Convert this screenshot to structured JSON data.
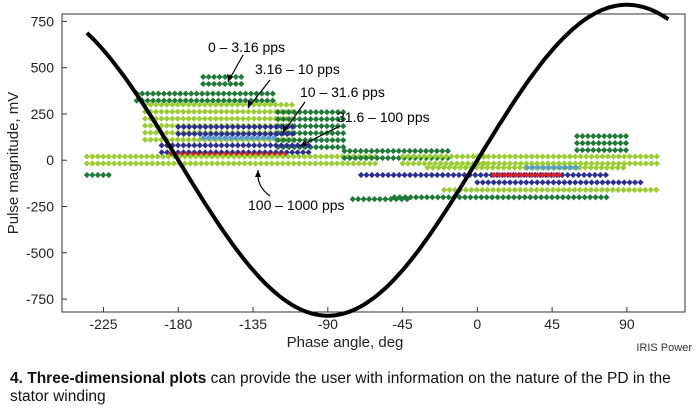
{
  "chart_data": {
    "type": "scatter",
    "title": "",
    "xlabel": "Phase angle, deg",
    "ylabel": "Pulse magnitude, mV",
    "xlim": [
      -250,
      125
    ],
    "ylim": [
      -820,
      790
    ],
    "xticks": [
      -225,
      -180,
      -135,
      -90,
      -45,
      0,
      45,
      90
    ],
    "yticks": [
      750,
      500,
      250,
      0,
      -250,
      -500,
      -750
    ],
    "xtick_labels": [
      "-225",
      "-180",
      "-135",
      "-90",
      "-45",
      "0",
      "45",
      "90"
    ],
    "ytick_labels": [
      "750",
      "500",
      "250",
      "0",
      "-250",
      "-500",
      "-750"
    ],
    "grid": false,
    "reference_curve": {
      "shape": "sine",
      "amplitude": 840,
      "period": 360,
      "peak_at": 90,
      "x": [
        -235,
        115
      ],
      "color": "#000000"
    },
    "rate_bands": [
      {
        "label": "0 – 3.16 pps",
        "color": "#1f7a3a"
      },
      {
        "label": "3.16 – 10 pps",
        "color": "#9acd32"
      },
      {
        "label": "10 – 31.6 pps",
        "color": "#2b2f8f"
      },
      {
        "label": "31.6 – 100 pps",
        "color": "#5b9bd5"
      },
      {
        "label": "100 – 1000 pps",
        "color": "#e02020"
      }
    ],
    "regions": [
      {
        "band": 0,
        "x": [
          -205,
          -120
        ],
        "y": [
          310,
          360
        ]
      },
      {
        "band": 0,
        "x": [
          -165,
          -140
        ],
        "y": [
          390,
          450
        ]
      },
      {
        "band": 1,
        "x": [
          -200,
          -110
        ],
        "y": [
          100,
          300
        ]
      },
      {
        "band": 0,
        "x": [
          -120,
          -80
        ],
        "y": [
          50,
          260
        ]
      },
      {
        "band": 2,
        "x": [
          -180,
          -110
        ],
        "y": [
          130,
          180
        ]
      },
      {
        "band": 3,
        "x": [
          -165,
          -120
        ],
        "y": [
          90,
          120
        ]
      },
      {
        "band": 2,
        "x": [
          -190,
          -100
        ],
        "y": [
          40,
          80
        ]
      },
      {
        "band": 4,
        "x": [
          -185,
          -115
        ],
        "y": [
          0,
          30
        ]
      },
      {
        "band": 1,
        "x": [
          -235,
          -60
        ],
        "y": [
          -20,
          20
        ]
      },
      {
        "band": 0,
        "x": [
          -80,
          -15
        ],
        "y": [
          10,
          50
        ]
      },
      {
        "band": 1,
        "x": [
          -45,
          5
        ],
        "y": [
          -20,
          20
        ]
      },
      {
        "band": 1,
        "x": [
          0,
          110
        ],
        "y": [
          -20,
          20
        ]
      },
      {
        "band": 0,
        "x": [
          60,
          90
        ],
        "y": [
          40,
          130
        ]
      },
      {
        "band": 1,
        "x": [
          -30,
          90
        ],
        "y": [
          -60,
          -40
        ]
      },
      {
        "band": 2,
        "x": [
          -70,
          80
        ],
        "y": [
          -100,
          -80
        ]
      },
      {
        "band": 4,
        "x": [
          10,
          50
        ],
        "y": [
          -90,
          -80
        ]
      },
      {
        "band": 3,
        "x": [
          30,
          60
        ],
        "y": [
          -50,
          -40
        ]
      },
      {
        "band": 2,
        "x": [
          0,
          100
        ],
        "y": [
          -140,
          -120
        ]
      },
      {
        "band": 1,
        "x": [
          -20,
          110
        ],
        "y": [
          -180,
          -160
        ]
      },
      {
        "band": 0,
        "x": [
          -50,
          80
        ],
        "y": [
          -230,
          -200
        ]
      },
      {
        "band": 0,
        "x": [
          -235,
          -220
        ],
        "y": [
          -90,
          -80
        ]
      },
      {
        "band": 0,
        "x": [
          -75,
          -40
        ],
        "y": [
          -240,
          -210
        ]
      }
    ]
  },
  "credit": "IRIS Power",
  "caption": {
    "bold": "4. Three-dimensional plots",
    "rest": " can provide the user with information on the nature of the PD in the stator winding"
  }
}
